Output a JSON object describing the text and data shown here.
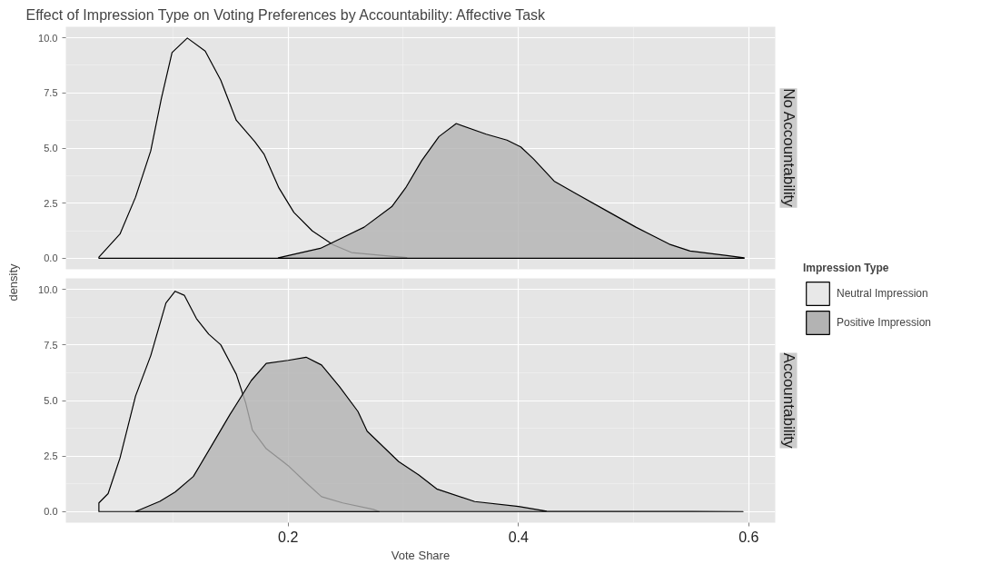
{
  "chart_data": [
    {
      "type": "area",
      "title": "Effect of Impression Type on Voting Preferences by Accountability: Affective Task",
      "subtitle": "No Accountability",
      "ylabel": "density",
      "legend": "right",
      "legend_title": "Impression Type",
      "grid": true,
      "tick_labels": "y",
      "xlim": [
        0.007,
        0.623
      ],
      "ylim": [
        -0.5,
        10.5
      ],
      "yticks": [
        {
          "value": 0,
          "label": "0.0"
        },
        {
          "value": 2.5,
          "label": "2.5"
        },
        {
          "value": 5,
          "label": "5.0"
        },
        {
          "value": 7.5,
          "label": "7.5"
        },
        {
          "value": 10,
          "label": "10.0"
        }
      ],
      "xticks": [
        0.2,
        0.4,
        0.6
      ],
      "series": [
        {
          "name": "Neutral Impression",
          "color": "#e8e8e8",
          "x": [
            0.0357,
            0.054,
            0.0675,
            0.0807,
            0.0899,
            0.0992,
            0.1125,
            0.128,
            0.1415,
            0.155,
            0.171,
            0.179,
            0.192,
            0.205,
            0.221,
            0.239,
            0.255,
            0.287,
            0.303
          ],
          "values": [
            0.05,
            1.1,
            2.77,
            4.87,
            7.24,
            9.33,
            9.99,
            9.4,
            8.08,
            6.26,
            5.29,
            4.73,
            3.19,
            2.08,
            1.24,
            0.61,
            0.26,
            0.1,
            0.03
          ]
        },
        {
          "name": "Positive Impression",
          "color": "#b3b3b3",
          "x": [
            0.1915,
            0.228,
            0.266,
            0.29,
            0.302,
            0.316,
            0.331,
            0.346,
            0.372,
            0.39,
            0.402,
            0.413,
            0.431,
            0.449,
            0.478,
            0.502,
            0.531,
            0.549,
            0.581,
            0.596
          ],
          "values": [
            0.02,
            0.45,
            1.41,
            2.34,
            3.19,
            4.43,
            5.52,
            6.11,
            5.63,
            5.36,
            5.05,
            4.51,
            3.5,
            2.96,
            2.11,
            1.41,
            0.64,
            0.33,
            0.12,
            0.02
          ]
        }
      ]
    },
    {
      "type": "area",
      "subtitle": "Accountability",
      "xlabel": "Vote Share",
      "grid": true,
      "xlim": [
        0.007,
        0.623
      ],
      "ylim": [
        -0.5,
        10.5
      ],
      "yticks": [
        {
          "value": 0,
          "label": "0.0"
        },
        {
          "value": 2.5,
          "label": "2.5"
        },
        {
          "value": 5,
          "label": "5.0"
        },
        {
          "value": 7.5,
          "label": "7.5"
        },
        {
          "value": 10,
          "label": "10.0"
        }
      ],
      "xticks": [
        0.2,
        0.4,
        0.6
      ],
      "series": [
        {
          "color": "#e8e8e8",
          "x": [
            0.0357,
            0.0357,
            0.0437,
            0.054,
            0.0675,
            0.0807,
            0.0939,
            0.1019,
            0.1098,
            0.1204,
            0.131,
            0.1415,
            0.155,
            0.163,
            0.169,
            0.181,
            0.2,
            0.2156,
            0.229,
            0.2474,
            0.274,
            0.279
          ],
          "values": [
            0,
            0.39,
            0.81,
            2.41,
            5.2,
            7.02,
            9.39,
            9.92,
            9.74,
            8.69,
            7.99,
            7.51,
            6.18,
            4.92,
            3.67,
            2.83,
            2.07,
            1.3,
            0.67,
            0.39,
            0.1,
            0
          ]
        },
        {
          "color": "#b3b3b3",
          "x": [
            0.0675,
            0.0886,
            0.1019,
            0.1177,
            0.1336,
            0.1495,
            0.168,
            0.181,
            0.2,
            0.2156,
            0.229,
            0.2447,
            0.2606,
            0.2686,
            0.296,
            0.3135,
            0.329,
            0.362,
            0.4,
            0.4246,
            0.595
          ],
          "values": [
            0,
            0.46,
            0.88,
            1.58,
            2.97,
            4.37,
            5.9,
            6.67,
            6.81,
            6.95,
            6.6,
            5.62,
            4.51,
            3.62,
            2.25,
            1.65,
            1.02,
            0.45,
            0.23,
            0.02,
            0
          ]
        }
      ]
    }
  ]
}
